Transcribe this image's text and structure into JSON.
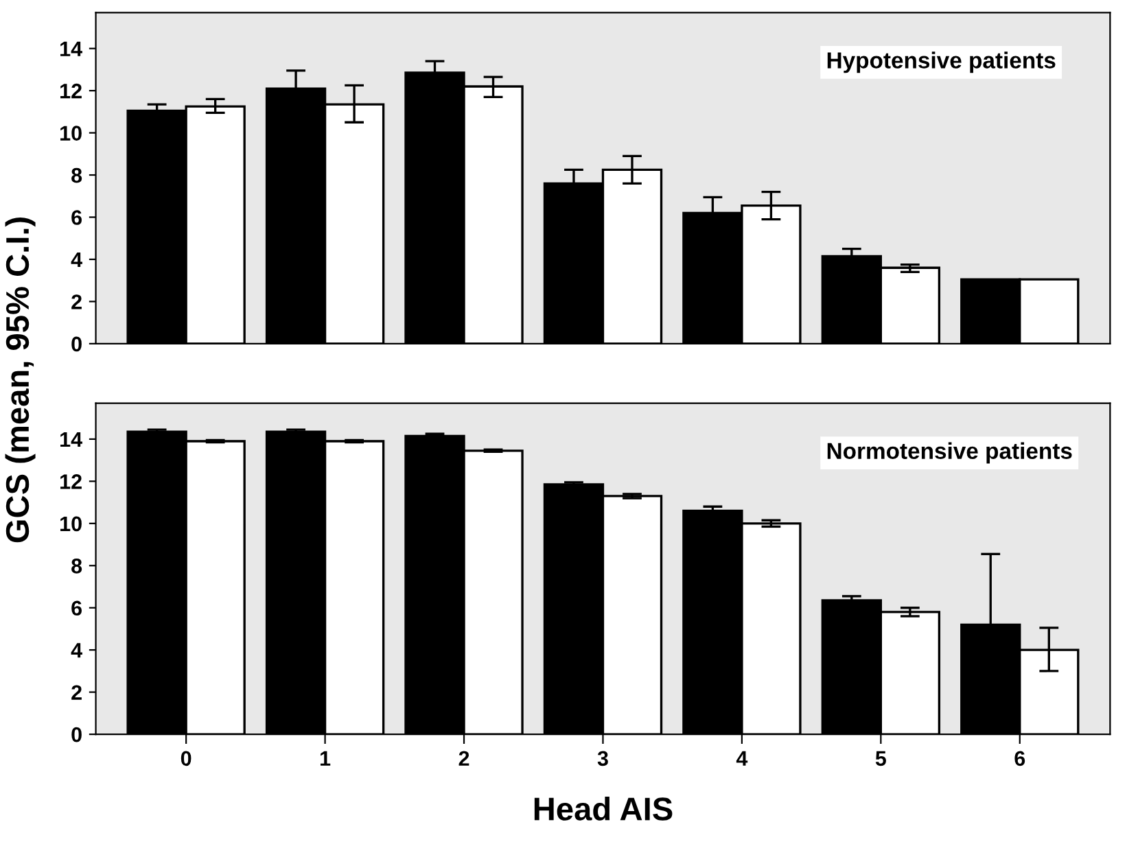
{
  "chart_data": [
    {
      "type": "bar",
      "ylabel": "GCS (mean, 95% C.I.)",
      "categories": [
        "0",
        "1",
        "2",
        "3",
        "4",
        "5",
        "6"
      ],
      "tick_labels": "y",
      "ylim": [
        0,
        15.7
      ],
      "yticks": [
        0,
        2,
        4,
        6,
        8,
        10,
        12,
        14
      ],
      "grid": false,
      "annotations": [
        "Hypotensive patients"
      ],
      "series": [
        {
          "color": "#000000",
          "values": [
            11.05,
            12.1,
            12.85,
            7.6,
            6.2,
            4.15,
            3.05
          ],
          "errors": [
            0.3,
            0.85,
            0.55,
            0.65,
            0.75,
            0.35,
            null
          ]
        },
        {
          "color": "#ffffff",
          "values": [
            11.25,
            11.35,
            12.2,
            8.25,
            6.55,
            3.6,
            3.05
          ],
          "errors": [
            [
              10.95,
              11.6
            ],
            [
              10.5,
              12.25
            ],
            [
              11.7,
              12.65
            ],
            [
              7.6,
              8.9
            ],
            [
              5.9,
              7.2
            ],
            [
              3.4,
              3.75
            ],
            null
          ]
        }
      ]
    },
    {
      "type": "bar",
      "xlabel": "Head AIS",
      "categories": [
        "0",
        "1",
        "2",
        "3",
        "4",
        "5",
        "6"
      ],
      "ylim": [
        0,
        15.7
      ],
      "yticks": [
        0,
        2,
        4,
        6,
        8,
        10,
        12,
        14
      ],
      "grid": false,
      "annotations": [
        "Normotensive patients"
      ],
      "series": [
        {
          "color": "#000000",
          "values": [
            14.35,
            14.35,
            14.15,
            11.85,
            10.6,
            6.35,
            5.2
          ],
          "errors": [
            0.1,
            0.1,
            0.1,
            0.1,
            0.2,
            0.2,
            3.35
          ]
        },
        {
          "color": "#ffffff",
          "values": [
            13.9,
            13.9,
            13.45,
            11.3,
            10.0,
            5.8,
            4.0
          ],
          "errors": [
            0.05,
            0.05,
            0.05,
            0.1,
            0.15,
            0.2,
            [
              3.0,
              5.05
            ]
          ]
        }
      ]
    }
  ]
}
